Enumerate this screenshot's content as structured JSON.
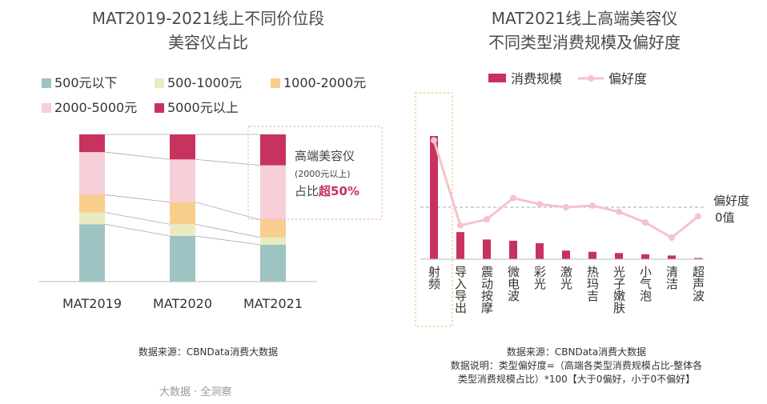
{
  "left": {
    "title_line1": "MAT2019-2021线上不同价位段",
    "title_line2": "美容仪占比",
    "legend": [
      {
        "label": "500元以下",
        "color": "#9ec3c3"
      },
      {
        "label": "500-1000元",
        "color": "#e9ebc0"
      },
      {
        "label": "1000-2000元",
        "color": "#f9cd8c"
      },
      {
        "label": "2000-5000元",
        "color": "#f6cfd8"
      },
      {
        "label": "5000元以上",
        "color": "#c8325e"
      }
    ],
    "callout": {
      "line1": "高端美容仪",
      "line2": "(2000元以上)",
      "line3_prefix": "占比",
      "line3_bold": "超50%"
    },
    "source": "数据来源：CBNData消费大数据",
    "footer": "大数据 · 全洞察"
  },
  "right": {
    "title_line1": "MAT2021线上高端美容仪",
    "title_line2": "不同类型消费规模及偏好度",
    "legend_bar": "消费规模",
    "legend_line": "偏好度",
    "zero_label_line1": "偏好度",
    "zero_label_line2": "0值",
    "source": "数据来源：CBNData消费大数据",
    "note_line1": "数据说明：类型偏好度=（高端各类型消费规模占比-整体各",
    "note_line2": "类型消费规模占比）*100【大于0偏好，小于0不偏好】"
  },
  "chart_data": [
    {
      "type": "bar",
      "stacked": true,
      "categories": [
        "MAT2019",
        "MAT2020",
        "MAT2021"
      ],
      "ylim": [
        0,
        100
      ],
      "series": [
        {
          "name": "500元以下",
          "values": [
            39,
            31,
            25
          ],
          "color": "#9ec3c3"
        },
        {
          "name": "500-1000元",
          "values": [
            8,
            8,
            5
          ],
          "color": "#e9ebc0"
        },
        {
          "name": "1000-2000元",
          "values": [
            12,
            15,
            12
          ],
          "color": "#f9cd8c"
        },
        {
          "name": "2000-5000元",
          "values": [
            29,
            29,
            37
          ],
          "color": "#f6cfd8"
        },
        {
          "name": "5000元以上",
          "values": [
            12,
            17,
            21
          ],
          "color": "#c8325e"
        }
      ]
    },
    {
      "type": "bar",
      "categories": [
        "射频",
        "导入导出",
        "震动按摩",
        "微电波",
        "彩光",
        "激光",
        "热玛吉",
        "光子嫩肤",
        "小气泡",
        "清洁",
        "超声波"
      ],
      "series": [
        {
          "name": "消费规模",
          "type": "bar",
          "color": "#c8325e",
          "values": [
            100,
            22,
            16,
            15,
            13,
            7,
            6,
            5,
            4,
            3,
            1
          ]
        },
        {
          "name": "偏好度",
          "type": "line",
          "color": "#f5c2cd",
          "values": [
            22,
            -6,
            -4,
            3,
            1,
            0,
            0.5,
            -1.5,
            -5,
            -10,
            -3
          ]
        }
      ],
      "ylim_bar": [
        0,
        100
      ],
      "ylim_line": [
        -15,
        30
      ]
    }
  ]
}
